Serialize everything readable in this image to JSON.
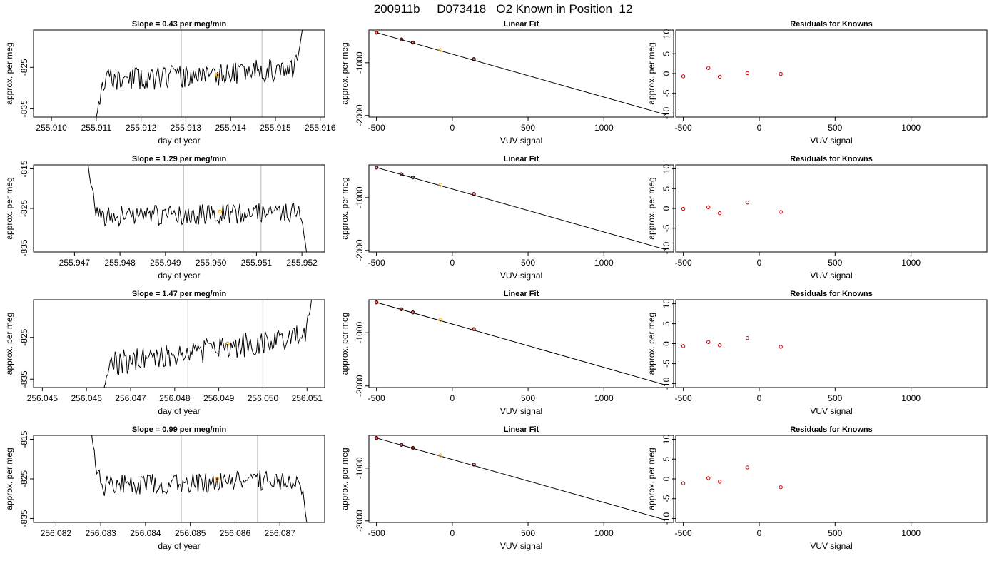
{
  "figure": {
    "title": "200911b     D073418   O2 Known in Position  12"
  },
  "colors": {
    "trace": "#000000",
    "marker": "#ffa500",
    "residual": "#cc0000",
    "vline": "#c8c8c8",
    "frame": "#000000"
  },
  "chart_data": [
    {
      "type": "line",
      "title": "Slope =  0.43  per meg/min",
      "xlabel": "day of year",
      "ylabel": "approx. per meg",
      "xlim": [
        255.9096,
        255.9161
      ],
      "ylim": [
        -837,
        -816
      ],
      "xticks": [
        255.91,
        255.911,
        255.912,
        255.913,
        255.914,
        255.915,
        255.916
      ],
      "xticklabels": [
        "255.910",
        "255.911",
        "255.912",
        "255.913",
        "255.914",
        "255.915",
        "255.916"
      ],
      "yticks": [
        -835,
        -825
      ],
      "yticklabels": [
        "-835",
        "-825"
      ],
      "vlines": [
        255.9129,
        255.9147
      ],
      "marker": {
        "x": 255.9137,
        "y": -826.8
      },
      "trace": {
        "x_start": 255.911,
        "x_end": 255.9156,
        "start_y": -837,
        "end_y": -816,
        "level_start": -828.5,
        "level_end": -825.3,
        "noise": 2.8,
        "seed": 11
      }
    },
    {
      "type": "scatter",
      "title": "Linear Fit",
      "xlabel": "VUV signal",
      "ylabel": "approx. per meg",
      "xlim": [
        -550,
        1460
      ],
      "ylim": [
        -2030,
        -380
      ],
      "xticks": [
        -500,
        0,
        500,
        1000
      ],
      "xticklabels": [
        "-500",
        "0",
        "500",
        "1000"
      ],
      "yticks": [
        -2000,
        -1000
      ],
      "yticklabels": [
        "-2000",
        "-1000"
      ],
      "points": [
        {
          "x": -500,
          "y": -430
        },
        {
          "x": -335,
          "y": -558
        },
        {
          "x": -260,
          "y": -617
        },
        {
          "x": -78,
          "y": -759
        },
        {
          "x": 142,
          "y": -932
        }
      ],
      "highlight_index": 3,
      "fit": {
        "x": [
          -500,
          1410
        ],
        "y": [
          -430,
          -1985
        ]
      }
    },
    {
      "type": "scatter",
      "title": "Residuals for Knowns",
      "xlabel": "VUV signal",
      "ylabel": "approx. per meg",
      "xlim": [
        -550,
        1500
      ],
      "ylim": [
        -11,
        11
      ],
      "xticks": [
        -500,
        0,
        500,
        1000
      ],
      "xticklabels": [
        "-500",
        "0",
        "500",
        "1000"
      ],
      "yticks": [
        -10,
        -5,
        0,
        5,
        10
      ],
      "yticklabels": [
        "-10",
        "-5",
        "0",
        "5",
        "10"
      ],
      "points": [
        {
          "x": -500,
          "y": -0.7
        },
        {
          "x": -335,
          "y": 1.4
        },
        {
          "x": -260,
          "y": -0.8
        },
        {
          "x": -78,
          "y": 0.1
        },
        {
          "x": 142,
          "y": -0.1
        }
      ]
    },
    {
      "type": "line",
      "title": "Slope =  1.29  per meg/min",
      "xlabel": "day of year",
      "ylabel": "approx. per meg",
      "xlim": [
        255.9461,
        255.9525
      ],
      "ylim": [
        -836,
        -814
      ],
      "xticks": [
        255.947,
        255.948,
        255.949,
        255.95,
        255.951,
        255.952
      ],
      "xticklabels": [
        "255.947",
        "255.948",
        "255.949",
        "255.950",
        "255.951",
        "255.952"
      ],
      "yticks": [
        -835,
        -825,
        -815
      ],
      "yticklabels": [
        "-835",
        "-825",
        "-815"
      ],
      "vlines": [
        255.9494,
        255.9511
      ],
      "marker": {
        "x": 255.9502,
        "y": -825.8
      },
      "trace": {
        "x_start": 255.9473,
        "x_end": 255.9521,
        "start_y": -814,
        "end_y": -836,
        "level_start": -827.2,
        "level_end": -825.8,
        "noise": 2.6,
        "seed": 23
      }
    },
    {
      "type": "scatter",
      "title": "Linear Fit",
      "xlabel": "VUV signal",
      "ylabel": "approx. per meg",
      "xlim": [
        -550,
        1460
      ],
      "ylim": [
        -2030,
        -380
      ],
      "xticks": [
        -500,
        0,
        500,
        1000
      ],
      "xticklabels": [
        "-500",
        "0",
        "500",
        "1000"
      ],
      "yticks": [
        -2000,
        -1000
      ],
      "yticklabels": [
        "-2000",
        "-1000"
      ],
      "points": [
        {
          "x": -500,
          "y": -430
        },
        {
          "x": -335,
          "y": -558
        },
        {
          "x": -260,
          "y": -617
        },
        {
          "x": -78,
          "y": -759
        },
        {
          "x": 142,
          "y": -932
        }
      ],
      "highlight_index": 3,
      "fit": {
        "x": [
          -500,
          1410
        ],
        "y": [
          -430,
          -1985
        ]
      }
    },
    {
      "type": "scatter",
      "title": "Residuals for Knowns",
      "xlabel": "VUV signal",
      "ylabel": "approx. per meg",
      "xlim": [
        -550,
        1500
      ],
      "ylim": [
        -11,
        11
      ],
      "xticks": [
        -500,
        0,
        500,
        1000
      ],
      "xticklabels": [
        "-500",
        "0",
        "500",
        "1000"
      ],
      "yticks": [
        -10,
        -5,
        0,
        5,
        10
      ],
      "yticklabels": [
        "-10",
        "-5",
        "0",
        "5",
        "10"
      ],
      "points": [
        {
          "x": -500,
          "y": -0.1
        },
        {
          "x": -335,
          "y": 0.3
        },
        {
          "x": -260,
          "y": -1.2
        },
        {
          "x": -78,
          "y": 1.5
        },
        {
          "x": 142,
          "y": -0.9
        }
      ]
    },
    {
      "type": "line",
      "title": "Slope =  1.47  per meg/min",
      "xlabel": "day of year",
      "ylabel": "approx. per meg",
      "xlim": [
        256.0448,
        256.0514
      ],
      "ylim": [
        -837,
        -816
      ],
      "xticks": [
        256.045,
        256.046,
        256.047,
        256.048,
        256.049,
        256.05,
        256.051
      ],
      "xticklabels": [
        "256.045",
        "256.046",
        "256.047",
        "256.048",
        "256.049",
        "256.050",
        "256.051"
      ],
      "yticks": [
        -835,
        -825
      ],
      "yticklabels": [
        "-835",
        "-825"
      ],
      "vlines": [
        256.0483,
        256.05
      ],
      "marker": {
        "x": 256.0492,
        "y": -826.5
      },
      "trace": {
        "x_start": 256.0464,
        "x_end": 256.0511,
        "start_y": -837,
        "end_y": -816,
        "level_start": -831.5,
        "level_end": -824.5,
        "noise": 3.0,
        "seed": 37
      }
    },
    {
      "type": "scatter",
      "title": "Linear Fit",
      "xlabel": "VUV signal",
      "ylabel": "approx. per meg",
      "xlim": [
        -550,
        1460
      ],
      "ylim": [
        -2030,
        -380
      ],
      "xticks": [
        -500,
        0,
        500,
        1000
      ],
      "xticklabels": [
        "-500",
        "0",
        "500",
        "1000"
      ],
      "yticks": [
        -2000,
        -1000
      ],
      "yticklabels": [
        "-2000",
        "-1000"
      ],
      "points": [
        {
          "x": -500,
          "y": -430
        },
        {
          "x": -335,
          "y": -558
        },
        {
          "x": -260,
          "y": -617
        },
        {
          "x": -78,
          "y": -759
        },
        {
          "x": 142,
          "y": -932
        }
      ],
      "highlight_index": 3,
      "fit": {
        "x": [
          -500,
          1410
        ],
        "y": [
          -430,
          -1985
        ]
      }
    },
    {
      "type": "scatter",
      "title": "Residuals for Knowns",
      "xlabel": "VUV signal",
      "ylabel": "approx. per meg",
      "xlim": [
        -550,
        1500
      ],
      "ylim": [
        -11,
        11
      ],
      "xticks": [
        -500,
        0,
        500,
        1000
      ],
      "xticklabels": [
        "-500",
        "0",
        "500",
        "1000"
      ],
      "yticks": [
        -10,
        -5,
        0,
        5,
        10
      ],
      "yticklabels": [
        "-10",
        "-5",
        "0",
        "5",
        "10"
      ],
      "points": [
        {
          "x": -500,
          "y": -0.6
        },
        {
          "x": -335,
          "y": 0.4
        },
        {
          "x": -260,
          "y": -0.4
        },
        {
          "x": -78,
          "y": 1.4
        },
        {
          "x": 142,
          "y": -0.8
        }
      ]
    },
    {
      "type": "line",
      "title": "Slope =  0.99  per meg/min",
      "xlabel": "day of year",
      "ylabel": "approx. per meg",
      "xlim": [
        256.0815,
        256.088
      ],
      "ylim": [
        -836,
        -814
      ],
      "xticks": [
        256.082,
        256.083,
        256.084,
        256.085,
        256.086,
        256.087
      ],
      "xticklabels": [
        "256.082",
        "256.083",
        "256.084",
        "256.085",
        "256.086",
        "256.087"
      ],
      "yticks": [
        -835,
        -825,
        -815
      ],
      "yticklabels": [
        "-835",
        "-825",
        "-815"
      ],
      "vlines": [
        256.0848,
        256.0865
      ],
      "marker": {
        "x": 256.0856,
        "y": -825.0
      },
      "trace": {
        "x_start": 256.0828,
        "x_end": 256.0876,
        "start_y": -814,
        "end_y": -836,
        "level_start": -826.8,
        "level_end": -825.0,
        "noise": 2.6,
        "seed": 53
      }
    },
    {
      "type": "scatter",
      "title": "Linear Fit",
      "xlabel": "VUV signal",
      "ylabel": "approx. per meg",
      "xlim": [
        -550,
        1460
      ],
      "ylim": [
        -2030,
        -380
      ],
      "xticks": [
        -500,
        0,
        500,
        1000
      ],
      "xticklabels": [
        "-500",
        "0",
        "500",
        "1000"
      ],
      "yticks": [
        -2000,
        -1000
      ],
      "yticklabels": [
        "-2000",
        "-1000"
      ],
      "points": [
        {
          "x": -500,
          "y": -430
        },
        {
          "x": -335,
          "y": -558
        },
        {
          "x": -260,
          "y": -617
        },
        {
          "x": -78,
          "y": -759
        },
        {
          "x": 142,
          "y": -932
        }
      ],
      "highlight_index": 3,
      "fit": {
        "x": [
          -500,
          1410
        ],
        "y": [
          -430,
          -1985
        ]
      }
    },
    {
      "type": "scatter",
      "title": "Residuals for Knowns",
      "xlabel": "VUV signal",
      "ylabel": "approx. per meg",
      "xlim": [
        -550,
        1500
      ],
      "ylim": [
        -11,
        11
      ],
      "xticks": [
        -500,
        0,
        500,
        1000
      ],
      "xticklabels": [
        "-500",
        "0",
        "500",
        "1000"
      ],
      "yticks": [
        -10,
        -5,
        0,
        5,
        10
      ],
      "yticklabels": [
        "-10",
        "-5",
        "0",
        "5",
        "10"
      ],
      "points": [
        {
          "x": -500,
          "y": -1.1
        },
        {
          "x": -335,
          "y": 0.2
        },
        {
          "x": -260,
          "y": -0.7
        },
        {
          "x": -78,
          "y": 2.9
        },
        {
          "x": 142,
          "y": -2.1
        }
      ]
    }
  ]
}
